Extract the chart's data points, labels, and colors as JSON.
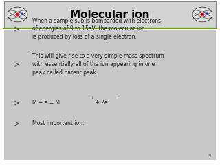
{
  "title": "Molecular ion",
  "title_fontsize": 11,
  "title_color": "#000000",
  "header_bg": "#d3d3d3",
  "header_border": "#888888",
  "body_bg": "#c8c8c8",
  "body_text_color": "#222222",
  "separator_color_top": "#6aaa00",
  "bullet_color": "#555555",
  "bullets": [
    "When a sample sub.is bombarded with electrons\nof energies of 9 to 15eV, the molecular ion\nis produced by loss of a single electron.",
    "This will give rise to a very simple mass spectrum\nwith essentially all of the ion appearing in one\npeak called parent peak.",
    "M + e = M",
    "Most important ion."
  ],
  "bullet_fontsize": 5.5,
  "page_number": "9",
  "page_number_fontsize": 5
}
